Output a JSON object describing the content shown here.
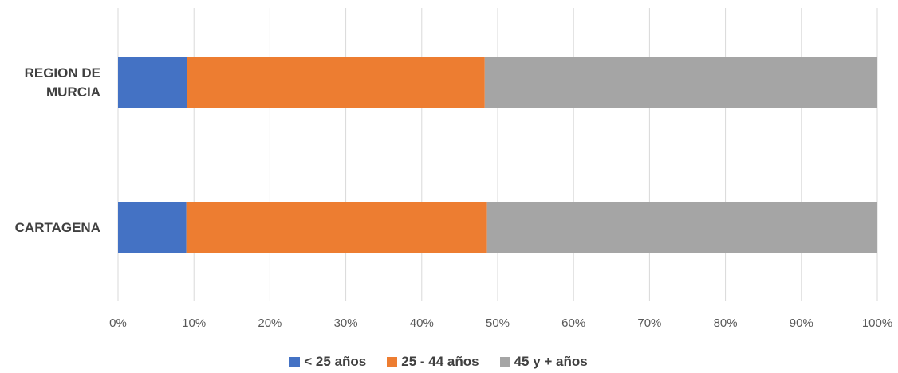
{
  "chart_data": {
    "type": "bar",
    "orientation": "horizontal",
    "stacked": "percent",
    "categories": [
      "REGION DE MURCIA",
      "CARTAGENA"
    ],
    "category_lines": [
      [
        "REGION DE",
        "MURCIA"
      ],
      [
        "CARTAGENA"
      ]
    ],
    "series": [
      {
        "name": "< 25 años",
        "color": "#4472c4",
        "values": [
          9.1,
          9.0
        ]
      },
      {
        "name": "25 - 44 años",
        "color": "#ed7d31",
        "values": [
          39.2,
          39.6
        ]
      },
      {
        "name": "45 y + años",
        "color": "#a5a5a5",
        "values": [
          51.7,
          51.4
        ]
      }
    ],
    "xlim": [
      0,
      100
    ],
    "xticks": [
      "0%",
      "10%",
      "20%",
      "30%",
      "40%",
      "50%",
      "60%",
      "70%",
      "80%",
      "90%",
      "100%"
    ],
    "grid": true,
    "legend_position": "bottom"
  }
}
